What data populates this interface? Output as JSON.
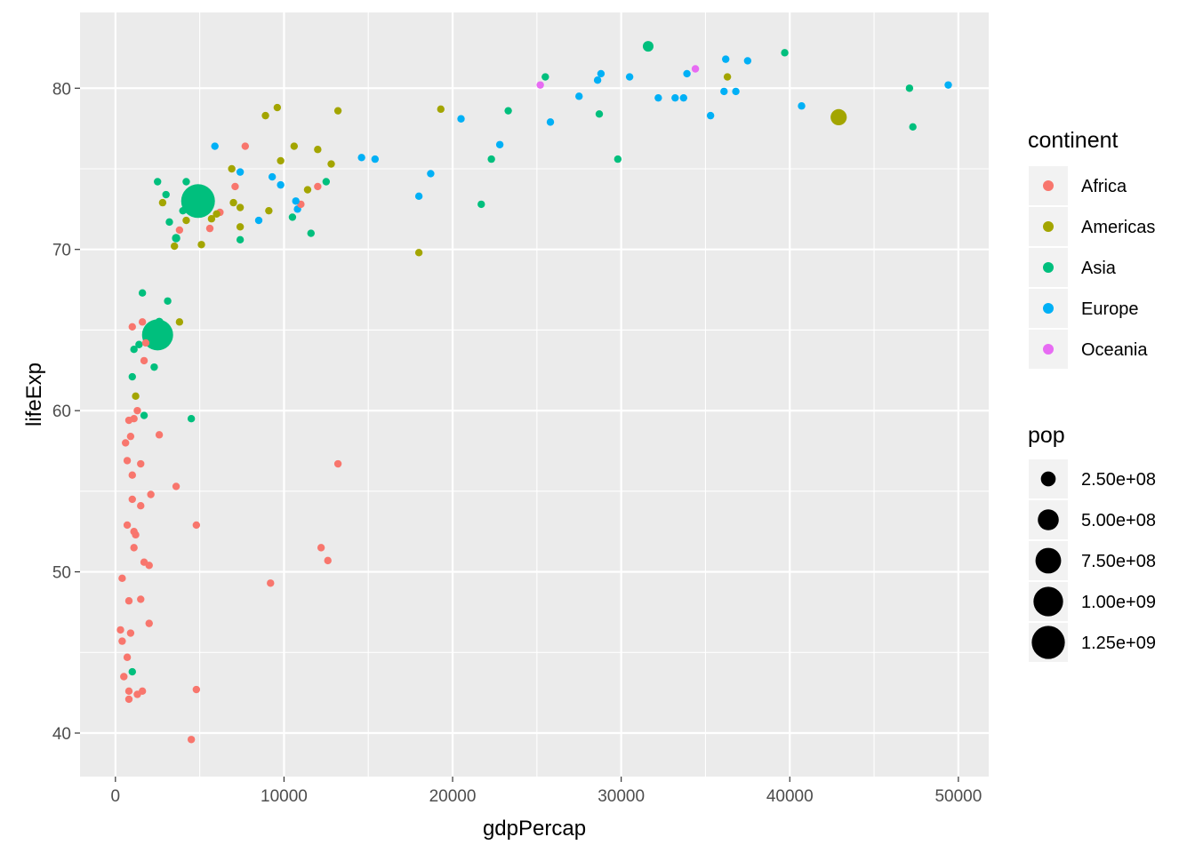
{
  "chart_data": {
    "type": "scatter",
    "xlabel": "gdpPercap",
    "ylabel": "lifeExp",
    "xlim": [
      -2100,
      51800
    ],
    "ylim": [
      37.3,
      84.7
    ],
    "x_ticks": [
      0,
      10000,
      20000,
      30000,
      40000,
      50000
    ],
    "x_tick_labels": [
      "0",
      "10000",
      "20000",
      "30000",
      "40000",
      "50000"
    ],
    "y_ticks": [
      40,
      50,
      60,
      70,
      80
    ],
    "y_tick_labels": [
      "40",
      "50",
      "60",
      "70",
      "80"
    ],
    "grid": true,
    "legend_placement": "right",
    "color_legend": {
      "title": "continent",
      "entries": [
        {
          "label": "Africa",
          "color": "#F8766D"
        },
        {
          "label": "Americas",
          "color": "#A3A500"
        },
        {
          "label": "Asia",
          "color": "#00BF7D"
        },
        {
          "label": "Europe",
          "color": "#00B0F6"
        },
        {
          "label": "Oceania",
          "color": "#E76BF3"
        }
      ]
    },
    "size_legend": {
      "title": "pop",
      "entries": [
        {
          "label": "2.50e+08",
          "value": 250000000
        },
        {
          "label": "5.00e+08",
          "value": 500000000
        },
        {
          "label": "7.50e+08",
          "value": 750000000
        },
        {
          "label": "1.00e+09",
          "value": 1000000000
        },
        {
          "label": "1.25e+09",
          "value": 1250000000
        }
      ]
    },
    "series": [
      {
        "name": "Africa",
        "points": [
          {
            "x": 4500,
            "y": 39.6,
            "pop": 10000000
          },
          {
            "x": 4800,
            "y": 42.7,
            "pop": 15000000
          },
          {
            "x": 800,
            "y": 42.1,
            "pop": 20000000
          },
          {
            "x": 1300,
            "y": 42.4,
            "pop": 15000000
          },
          {
            "x": 800,
            "y": 42.6,
            "pop": 10000000
          },
          {
            "x": 1600,
            "y": 42.6,
            "pop": 8000000
          },
          {
            "x": 500,
            "y": 43.5,
            "pop": 10000000
          },
          {
            "x": 700,
            "y": 44.7,
            "pop": 6000000
          },
          {
            "x": 400,
            "y": 45.7,
            "pop": 6000000
          },
          {
            "x": 300,
            "y": 46.4,
            "pop": 40000000
          },
          {
            "x": 900,
            "y": 46.2,
            "pop": 15000000
          },
          {
            "x": 2000,
            "y": 46.8,
            "pop": 60000000
          },
          {
            "x": 800,
            "y": 48.2,
            "pop": 20000000
          },
          {
            "x": 1500,
            "y": 48.3,
            "pop": 20000000
          },
          {
            "x": 400,
            "y": 49.6,
            "pop": 10000000
          },
          {
            "x": 9200,
            "y": 49.3,
            "pop": 35000000
          },
          {
            "x": 1700,
            "y": 50.6,
            "pop": 15000000
          },
          {
            "x": 2000,
            "y": 50.4,
            "pop": 15000000
          },
          {
            "x": 12600,
            "y": 50.7,
            "pop": 3000000
          },
          {
            "x": 12200,
            "y": 51.5,
            "pop": 2000000
          },
          {
            "x": 1100,
            "y": 51.5,
            "pop": 15000000
          },
          {
            "x": 1200,
            "y": 52.3,
            "pop": 20000000
          },
          {
            "x": 700,
            "y": 52.9,
            "pop": 50000000
          },
          {
            "x": 4800,
            "y": 52.9,
            "pop": 3000000
          },
          {
            "x": 1100,
            "y": 52.5,
            "pop": 15000000
          },
          {
            "x": 1500,
            "y": 54.1,
            "pop": 20000000
          },
          {
            "x": 1000,
            "y": 54.5,
            "pop": 10000000
          },
          {
            "x": 2100,
            "y": 54.8,
            "pop": 5000000
          },
          {
            "x": 3600,
            "y": 55.3,
            "pop": 8000000
          },
          {
            "x": 1000,
            "y": 56.0,
            "pop": 8000000
          },
          {
            "x": 1500,
            "y": 56.7,
            "pop": 10000000
          },
          {
            "x": 700,
            "y": 56.9,
            "pop": 10000000
          },
          {
            "x": 13200,
            "y": 56.7,
            "pop": 4000000
          },
          {
            "x": 600,
            "y": 58.0,
            "pop": 8000000
          },
          {
            "x": 900,
            "y": 58.4,
            "pop": 10000000
          },
          {
            "x": 2600,
            "y": 58.5,
            "pop": 30000000
          },
          {
            "x": 800,
            "y": 59.4,
            "pop": 10000000
          },
          {
            "x": 1100,
            "y": 59.5,
            "pop": 20000000
          },
          {
            "x": 1300,
            "y": 60.0,
            "pop": 20000000
          },
          {
            "x": 1700,
            "y": 63.1,
            "pop": 15000000
          },
          {
            "x": 1800,
            "y": 64.2,
            "pop": 8000000
          },
          {
            "x": 1000,
            "y": 65.2,
            "pop": 5000000
          },
          {
            "x": 1600,
            "y": 65.5,
            "pop": 5000000
          },
          {
            "x": 3800,
            "y": 71.2,
            "pop": 30000000
          },
          {
            "x": 5600,
            "y": 71.3,
            "pop": 40000000
          },
          {
            "x": 6200,
            "y": 72.3,
            "pop": 20000000
          },
          {
            "x": 7100,
            "y": 73.9,
            "pop": 15000000
          },
          {
            "x": 11000,
            "y": 72.8,
            "pop": 10000000
          },
          {
            "x": 12000,
            "y": 73.9,
            "pop": 10000000
          },
          {
            "x": 7700,
            "y": 76.4,
            "pop": 3000000
          }
        ]
      },
      {
        "name": "Americas",
        "points": [
          {
            "x": 18000,
            "y": 69.8,
            "pop": 5000000
          },
          {
            "x": 3500,
            "y": 70.2,
            "pop": 8000000
          },
          {
            "x": 5100,
            "y": 70.3,
            "pop": 15000000
          },
          {
            "x": 4200,
            "y": 71.8,
            "pop": 10000000
          },
          {
            "x": 7400,
            "y": 71.4,
            "pop": 20000000
          },
          {
            "x": 5700,
            "y": 71.9,
            "pop": 20000000
          },
          {
            "x": 9100,
            "y": 72.4,
            "pop": 60000000
          },
          {
            "x": 7400,
            "y": 72.6,
            "pop": 8000000
          },
          {
            "x": 6000,
            "y": 72.2,
            "pop": 20000000
          },
          {
            "x": 7000,
            "y": 72.9,
            "pop": 30000000
          },
          {
            "x": 2800,
            "y": 72.9,
            "pop": 8000000
          },
          {
            "x": 11400,
            "y": 73.7,
            "pop": 25000000
          },
          {
            "x": 12800,
            "y": 75.3,
            "pop": 30000000
          },
          {
            "x": 9800,
            "y": 75.5,
            "pop": 8000000
          },
          {
            "x": 6900,
            "y": 75.0,
            "pop": 15000000
          },
          {
            "x": 12000,
            "y": 76.2,
            "pop": 45000000
          },
          {
            "x": 10600,
            "y": 76.4,
            "pop": 8000000
          },
          {
            "x": 8900,
            "y": 78.3,
            "pop": 10000000
          },
          {
            "x": 9600,
            "y": 78.8,
            "pop": 8000000
          },
          {
            "x": 13200,
            "y": 78.6,
            "pop": 15000000
          },
          {
            "x": 19300,
            "y": 78.7,
            "pop": 8000000
          },
          {
            "x": 36300,
            "y": 80.7,
            "pop": 30000000
          },
          {
            "x": 42900,
            "y": 78.2,
            "pop": 300000000
          },
          {
            "x": 3800,
            "y": 65.5,
            "pop": 10000000
          },
          {
            "x": 1200,
            "y": 60.9,
            "pop": 10000000
          }
        ]
      },
      {
        "name": "Asia",
        "points": [
          {
            "x": 1000,
            "y": 43.8,
            "pop": 20000000
          },
          {
            "x": 4500,
            "y": 59.5,
            "pop": 25000000
          },
          {
            "x": 1700,
            "y": 59.7,
            "pop": 20000000
          },
          {
            "x": 1000,
            "y": 62.1,
            "pop": 25000000
          },
          {
            "x": 2300,
            "y": 62.7,
            "pop": 25000000
          },
          {
            "x": 1100,
            "y": 63.8,
            "pop": 25000000
          },
          {
            "x": 1400,
            "y": 64.1,
            "pop": 50000000
          },
          {
            "x": 2500,
            "y": 64.7,
            "pop": 1100000000
          },
          {
            "x": 2600,
            "y": 65.5,
            "pop": 80000000
          },
          {
            "x": 1600,
            "y": 67.3,
            "pop": 25000000
          },
          {
            "x": 3100,
            "y": 66.8,
            "pop": 8000000
          },
          {
            "x": 3200,
            "y": 71.7,
            "pop": 50000000
          },
          {
            "x": 3600,
            "y": 70.7,
            "pop": 80000000
          },
          {
            "x": 4000,
            "y": 72.4,
            "pop": 20000000
          },
          {
            "x": 4200,
            "y": 74.2,
            "pop": 20000000
          },
          {
            "x": 3000,
            "y": 73.4,
            "pop": 10000000
          },
          {
            "x": 2500,
            "y": 74.2,
            "pop": 40000000
          },
          {
            "x": 4900,
            "y": 73.0,
            "pop": 1300000000
          },
          {
            "x": 7400,
            "y": 70.6,
            "pop": 35000000
          },
          {
            "x": 10500,
            "y": 72.0,
            "pop": 8000000
          },
          {
            "x": 11600,
            "y": 71.0,
            "pop": 40000000
          },
          {
            "x": 12500,
            "y": 74.2,
            "pop": 25000000
          },
          {
            "x": 21700,
            "y": 72.8,
            "pop": 25000000
          },
          {
            "x": 22300,
            "y": 75.6,
            "pop": 8000000
          },
          {
            "x": 23300,
            "y": 78.6,
            "pop": 35000000
          },
          {
            "x": 25500,
            "y": 80.7,
            "pop": 10000000
          },
          {
            "x": 28700,
            "y": 78.4,
            "pop": 25000000
          },
          {
            "x": 29800,
            "y": 75.6,
            "pop": 5000000
          },
          {
            "x": 31600,
            "y": 82.6,
            "pop": 130000000
          },
          {
            "x": 39700,
            "y": 82.2,
            "pop": 10000000
          },
          {
            "x": 47100,
            "y": 80.0,
            "pop": 8000000
          },
          {
            "x": 47300,
            "y": 77.6,
            "pop": 8000000
          }
        ]
      },
      {
        "name": "Europe",
        "points": [
          {
            "x": 5900,
            "y": 76.4,
            "pop": 10000000
          },
          {
            "x": 7400,
            "y": 74.8,
            "pop": 10000000
          },
          {
            "x": 9300,
            "y": 74.5,
            "pop": 8000000
          },
          {
            "x": 9800,
            "y": 74.0,
            "pop": 15000000
          },
          {
            "x": 8500,
            "y": 71.8,
            "pop": 45000000
          },
          {
            "x": 10700,
            "y": 73.0,
            "pop": 10000000
          },
          {
            "x": 10800,
            "y": 72.5,
            "pop": 25000000
          },
          {
            "x": 14600,
            "y": 75.7,
            "pop": 10000000
          },
          {
            "x": 15400,
            "y": 75.6,
            "pop": 30000000
          },
          {
            "x": 18000,
            "y": 73.3,
            "pop": 15000000
          },
          {
            "x": 18700,
            "y": 74.7,
            "pop": 10000000
          },
          {
            "x": 20500,
            "y": 78.1,
            "pop": 15000000
          },
          {
            "x": 22800,
            "y": 76.5,
            "pop": 20000000
          },
          {
            "x": 25800,
            "y": 77.9,
            "pop": 10000000
          },
          {
            "x": 27500,
            "y": 79.5,
            "pop": 15000000
          },
          {
            "x": 28600,
            "y": 80.5,
            "pop": 40000000
          },
          {
            "x": 28800,
            "y": 80.9,
            "pop": 40000000
          },
          {
            "x": 30500,
            "y": 80.7,
            "pop": 60000000
          },
          {
            "x": 32200,
            "y": 79.4,
            "pop": 60000000
          },
          {
            "x": 33200,
            "y": 79.4,
            "pop": 60000000
          },
          {
            "x": 33700,
            "y": 79.4,
            "pop": 20000000
          },
          {
            "x": 33900,
            "y": 80.9,
            "pop": 20000000
          },
          {
            "x": 35300,
            "y": 78.3,
            "pop": 10000000
          },
          {
            "x": 36100,
            "y": 79.8,
            "pop": 20000000
          },
          {
            "x": 36200,
            "y": 81.8,
            "pop": 5000000
          },
          {
            "x": 36800,
            "y": 79.8,
            "pop": 25000000
          },
          {
            "x": 37500,
            "y": 81.7,
            "pop": 15000000
          },
          {
            "x": 40700,
            "y": 78.9,
            "pop": 10000000
          },
          {
            "x": 49400,
            "y": 80.2,
            "pop": 15000000
          }
        ]
      },
      {
        "name": "Oceania",
        "points": [
          {
            "x": 25200,
            "y": 80.2,
            "pop": 10000000
          },
          {
            "x": 34400,
            "y": 81.2,
            "pop": 25000000
          }
        ]
      }
    ]
  }
}
